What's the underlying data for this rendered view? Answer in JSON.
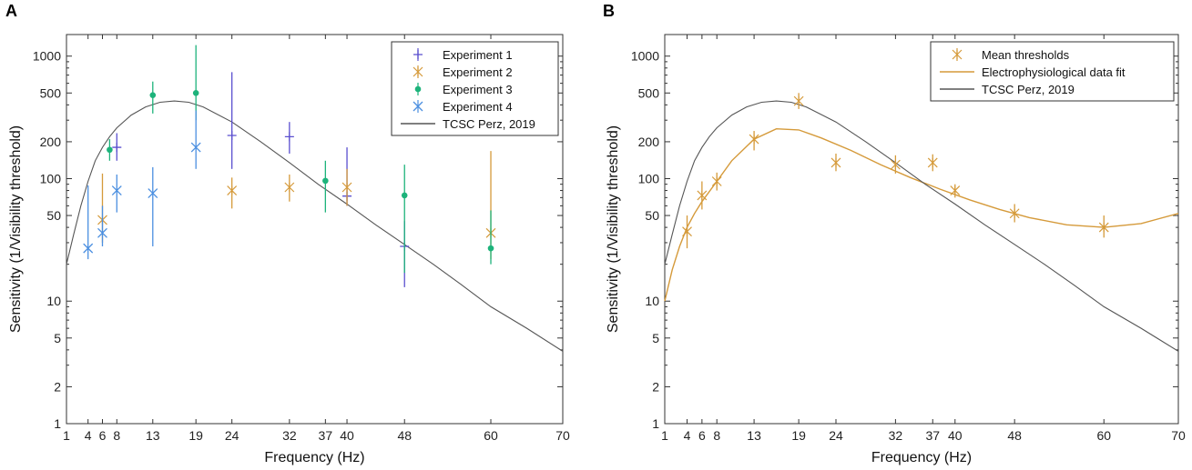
{
  "chart_data": [
    {
      "panel": "A",
      "type": "scatter",
      "xlabel": "Frequency (Hz)",
      "ylabel": "Sensitivity (1/Visibility threshold)",
      "xlim": [
        1,
        70
      ],
      "ylim": [
        1,
        1500
      ],
      "yscale": "log",
      "xticks": [
        1,
        4,
        6,
        8,
        13,
        19,
        24,
        32,
        37,
        40,
        48,
        60,
        70
      ],
      "yticks": [
        1,
        2,
        5,
        10,
        50,
        100,
        200,
        500,
        1000
      ],
      "legend_position": "top-right",
      "series": [
        {
          "name": "Experiment 1",
          "marker": "plus",
          "color": "#5a4fcf",
          "x": [
            8,
            24,
            32,
            40,
            48
          ],
          "y": [
            180,
            225,
            220,
            72,
            28
          ],
          "err_low": [
            140,
            120,
            160,
            60,
            13
          ],
          "err_high": [
            235,
            740,
            290,
            180,
            45
          ]
        },
        {
          "name": "Experiment 2",
          "marker": "asterisk",
          "color": "#d59a3a",
          "x": [
            6,
            24,
            32,
            40,
            60
          ],
          "y": [
            46,
            80,
            85,
            85,
            36
          ],
          "err_low": [
            30,
            57,
            65,
            60,
            22
          ],
          "err_high": [
            110,
            102,
            108,
            120,
            168
          ]
        },
        {
          "name": "Experiment 3",
          "marker": "dot",
          "color": "#1db37b",
          "x": [
            7,
            13,
            19,
            37,
            48,
            60
          ],
          "y": [
            172,
            480,
            500,
            96,
            73,
            27
          ],
          "err_low": [
            140,
            340,
            300,
            53,
            17,
            20
          ],
          "err_high": [
            210,
            620,
            1230,
            140,
            130,
            55
          ]
        },
        {
          "name": "Experiment 4",
          "marker": "cross",
          "color": "#4b8fe0",
          "x": [
            4,
            6,
            8,
            13,
            19
          ],
          "y": [
            27,
            36,
            80,
            76,
            180
          ],
          "err_low": [
            22,
            28,
            53,
            28,
            120
          ],
          "err_high": [
            88,
            60,
            108,
            124,
            360
          ]
        },
        {
          "name": "TCSC Perz, 2019",
          "marker": "line",
          "color": "#555555"
        }
      ]
    },
    {
      "panel": "B",
      "type": "scatter",
      "xlabel": "Frequency (Hz)",
      "ylabel": "Sensitivity (1/Visibility threshold)",
      "xlim": [
        1,
        70
      ],
      "ylim": [
        1,
        1500
      ],
      "yscale": "log",
      "xticks": [
        1,
        4,
        6,
        8,
        13,
        19,
        24,
        32,
        37,
        40,
        48,
        60,
        70
      ],
      "yticks": [
        1,
        2,
        5,
        10,
        50,
        100,
        200,
        500,
        1000
      ],
      "legend_position": "top-right",
      "series": [
        {
          "name": "Mean thresholds",
          "marker": "asterisk",
          "color": "#d59a3a",
          "x": [
            4,
            6,
            8,
            13,
            19,
            24,
            32,
            37,
            40,
            48,
            60
          ],
          "y": [
            37,
            73,
            95,
            210,
            430,
            135,
            130,
            135,
            80,
            52,
            40
          ],
          "err_low": [
            27,
            56,
            80,
            170,
            370,
            115,
            110,
            115,
            70,
            44,
            33
          ],
          "err_high": [
            50,
            95,
            112,
            245,
            500,
            160,
            155,
            158,
            90,
            62,
            50
          ]
        },
        {
          "name": "Electrophysiological data fit",
          "marker": "line",
          "color": "#d59a3a"
        },
        {
          "name": "TCSC Perz, 2019",
          "marker": "line",
          "color": "#555555"
        }
      ],
      "fit_curve": {
        "x": [
          1,
          2,
          3,
          4,
          5,
          6,
          8,
          10,
          13,
          16,
          19,
          22,
          26,
          30,
          34,
          38,
          42,
          46,
          50,
          55,
          60,
          65,
          70
        ],
        "y": [
          10,
          18,
          28,
          40,
          52,
          65,
          95,
          140,
          210,
          255,
          250,
          215,
          170,
          130,
          102,
          82,
          67,
          56,
          48,
          42,
          40,
          43,
          52
        ]
      }
    }
  ],
  "tcsc_curve": {
    "x": [
      1,
      2,
      3,
      4,
      5,
      6,
      7,
      8,
      10,
      12,
      14,
      16,
      18,
      20,
      24,
      28,
      32,
      36,
      40,
      44,
      48,
      52,
      56,
      60,
      65,
      70
    ],
    "y": [
      20,
      35,
      60,
      95,
      140,
      180,
      220,
      260,
      330,
      385,
      420,
      430,
      420,
      385,
      290,
      200,
      135,
      90,
      62,
      42,
      29,
      20,
      13.5,
      9,
      6,
      3.9
    ]
  }
}
